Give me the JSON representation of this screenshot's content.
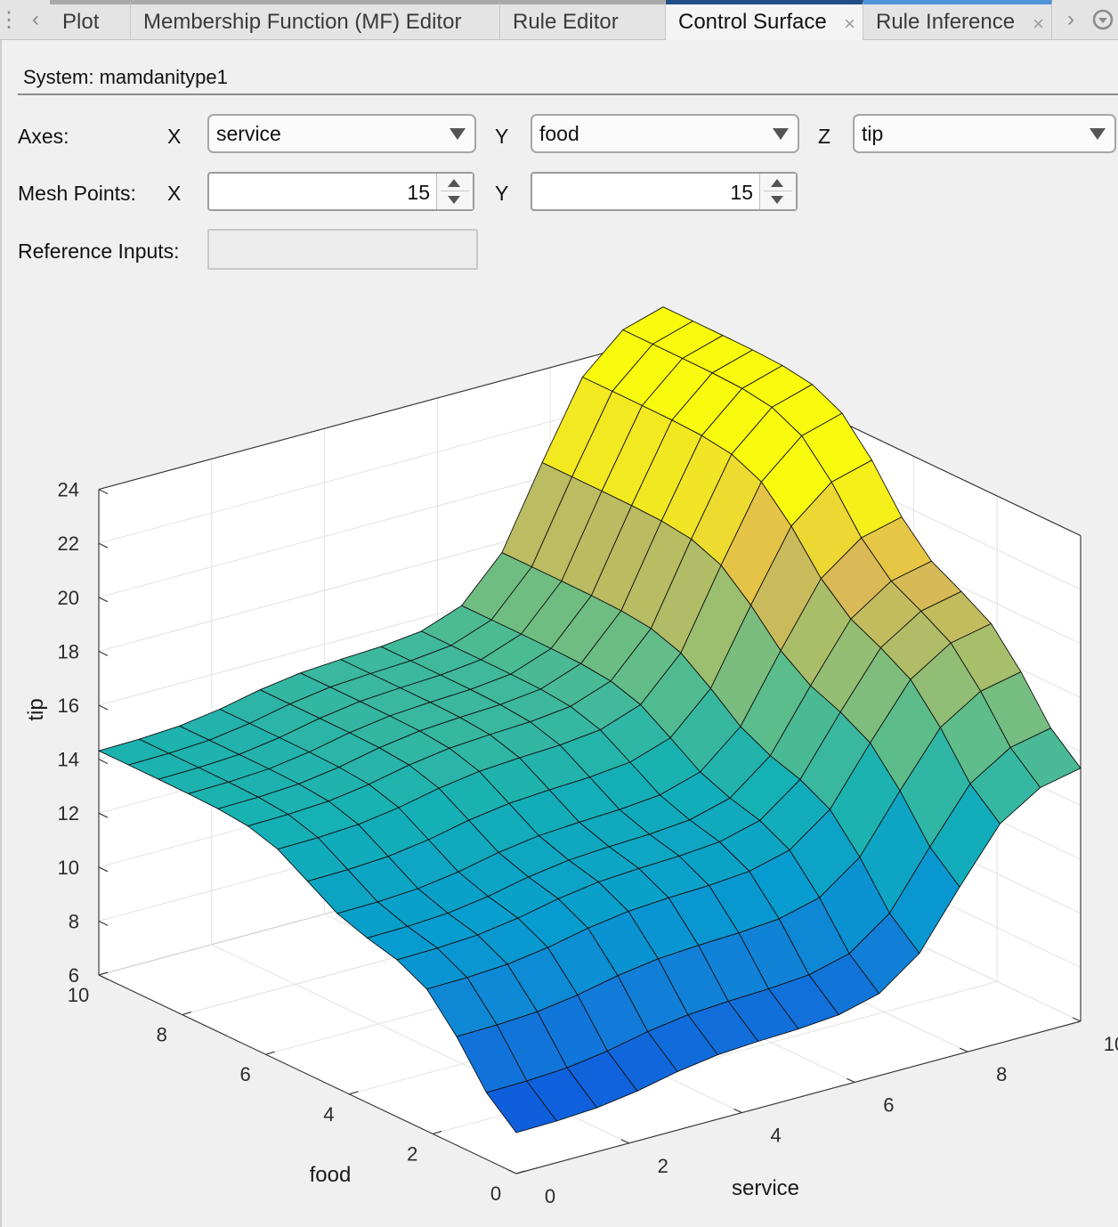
{
  "tabs": [
    {
      "label": "Plot"
    },
    {
      "label": "Membership Function (MF) Editor"
    },
    {
      "label": "Rule Editor"
    },
    {
      "label": "Control Surface"
    },
    {
      "label": "Rule Inference"
    }
  ],
  "icons": {
    "prev": "chevron-left-icon",
    "next": "chevron-right-icon",
    "menu": "dropdown-circle-icon",
    "close": "close-icon"
  },
  "system": {
    "label": "System: mamdanitype1"
  },
  "axes": {
    "label": "Axes:",
    "x_label": "X",
    "x_value": "service",
    "y_label": "Y",
    "y_value": "food",
    "z_label": "Z",
    "z_value": "tip"
  },
  "mesh": {
    "label": "Mesh Points:",
    "x_label": "X",
    "x_value": "15",
    "y_label": "Y",
    "y_value": "15"
  },
  "reference": {
    "label": "Reference Inputs:",
    "value": ""
  },
  "chart_data": {
    "type": "surface",
    "x_name": "service",
    "y_name": "food",
    "z_name": "tip",
    "xlim": [
      0,
      10
    ],
    "ylim": [
      0,
      10
    ],
    "zlim": [
      6,
      24
    ],
    "x_ticks": [
      "0",
      "2",
      "4",
      "6",
      "8",
      "10"
    ],
    "y_ticks": [
      "0",
      "2",
      "4",
      "6",
      "8",
      "10"
    ],
    "z_ticks": [
      "6",
      "8",
      "10",
      "12",
      "14",
      "16",
      "18",
      "20",
      "22",
      "24"
    ],
    "mesh_points": [
      15,
      15
    ],
    "colormap": "parula",
    "grid": true,
    "surface": "z = 7 + 1.0*s(service,2.5) + 7.0*s(service,7.8) + 5.0*s(food,1.2) + 2.3*s(food,5.0) + 3.0*s(service,7.8)*s(food,4.5), s(v,c)=logistic((v-c)/0.55)"
  }
}
